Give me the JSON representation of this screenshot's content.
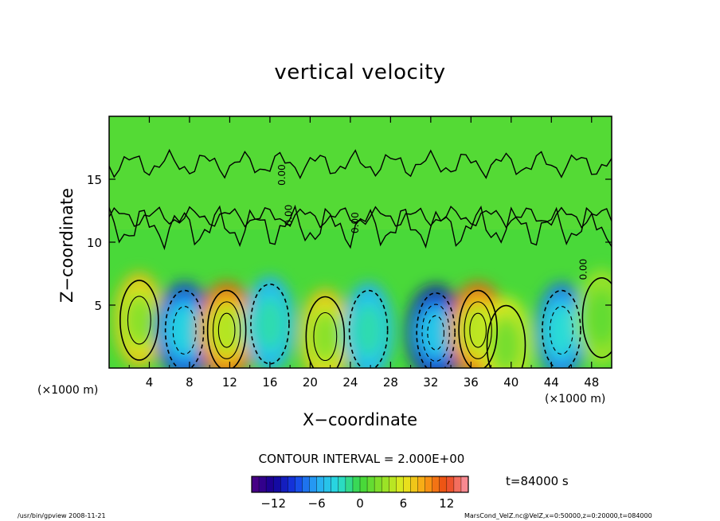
{
  "chart_data": {
    "type": "heatmap",
    "title": "vertical velocity",
    "xlabel": "X−coordinate",
    "ylabel": "Z−coordinate",
    "x_unit_left": "(×1000 m)",
    "x_unit_right": "(×1000 m)",
    "xlim": [
      0,
      50
    ],
    "ylim": [
      0,
      20
    ],
    "x_ticks": [
      4,
      8,
      12,
      16,
      20,
      24,
      28,
      32,
      36,
      40,
      44,
      48
    ],
    "y_ticks": [
      5,
      10,
      15
    ],
    "contour_interval_label": "CONTOUR INTERVAL = 2.000E+00",
    "contour_interval": 2,
    "contour_line_labels": [
      "0.00",
      "0.00",
      "0.00",
      "0.00"
    ],
    "time_label": "t=84000 s",
    "colorbar": {
      "range": [
        -15,
        15
      ],
      "ticks": [
        -12,
        -6,
        0,
        6,
        12
      ],
      "tick_labels": [
        "−12",
        "−6",
        "0",
        "6",
        "12"
      ]
    },
    "cells": [
      {
        "x": 3,
        "z": 3.8,
        "value": 8
      },
      {
        "x": 7.5,
        "z": 3,
        "value": -10
      },
      {
        "x": 11.7,
        "z": 3,
        "value": 12
      },
      {
        "x": 16,
        "z": 3.5,
        "value": -6
      },
      {
        "x": 21.5,
        "z": 2.5,
        "value": 8
      },
      {
        "x": 25.8,
        "z": 3,
        "value": -6
      },
      {
        "x": 32.5,
        "z": 2.8,
        "value": -12
      },
      {
        "x": 36.7,
        "z": 3,
        "value": 12
      },
      {
        "x": 39.5,
        "z": 1.8,
        "value": 6
      },
      {
        "x": 45,
        "z": 3,
        "value": -8
      },
      {
        "x": 49,
        "z": 4,
        "value": 4
      }
    ]
  },
  "footer": {
    "left": "/usr/bin/gpview   2008-11-21",
    "right": "MarsCond_VelZ.nc@VelZ,x=0:50000,z=0:20000,t=084000"
  }
}
